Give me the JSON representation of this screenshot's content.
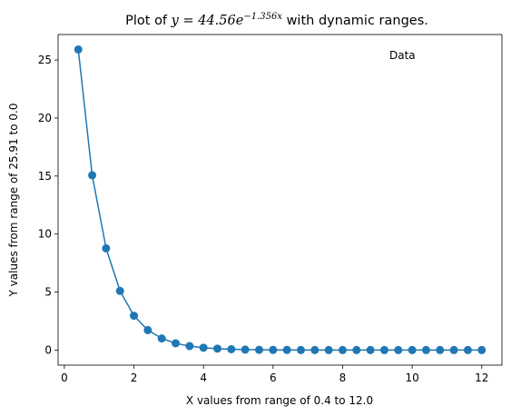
{
  "chart_data": {
    "type": "line",
    "title": {
      "prefix": "Plot of ",
      "formula": "y = 44.56e",
      "exponent": "−1.356x",
      "suffix": " with dynamic ranges."
    },
    "xlabel": "X values from range of 0.4 to 12.0",
    "ylabel": "Y values from range of 25.91 to 0.0",
    "xlim": [
      -0.18,
      12.58
    ],
    "ylim": [
      -1.3,
      27.2
    ],
    "x_ticks": [
      0,
      2,
      4,
      6,
      8,
      10,
      12
    ],
    "y_ticks": [
      0,
      5,
      10,
      15,
      20,
      25
    ],
    "grid": false,
    "legend_placement": "top-right",
    "series": [
      {
        "name": "Data",
        "color": "#1f77b4",
        "marker": "circle",
        "x": [
          0.4,
          0.8,
          1.2,
          1.6,
          2.0,
          2.4,
          2.8,
          3.2,
          3.6,
          4.0,
          4.4,
          4.8,
          5.2,
          5.6,
          6.0,
          6.4,
          6.8,
          7.2,
          7.6,
          8.0,
          8.4,
          8.8,
          9.2,
          9.6,
          10.0,
          10.4,
          10.8,
          11.2,
          11.6,
          12.0
        ],
        "y": [
          25.91,
          15.07,
          8.77,
          5.1,
          2.96,
          1.72,
          1.0,
          0.58,
          0.34,
          0.2,
          0.12,
          0.07,
          0.04,
          0.02,
          0.01,
          0.01,
          0.0,
          0.0,
          0.0,
          0.0,
          0.0,
          0.0,
          0.0,
          0.0,
          0.0,
          0.0,
          0.0,
          0.0,
          0.0,
          0.0
        ]
      }
    ]
  }
}
